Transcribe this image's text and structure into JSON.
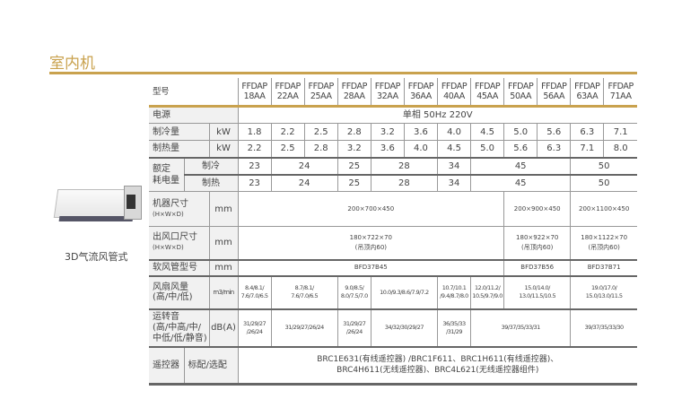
{
  "section_title": "室内机",
  "product": {
    "name": "3D气流风管式"
  },
  "table": {
    "model_label": "型号",
    "models": [
      "FFDAP\n18AA",
      "FFDAP\n22AA",
      "FFDAP\n25AA",
      "FFDAP\n28AA",
      "FFDAP\n32AA",
      "FFDAP\n36AA",
      "FFDAP\n40AA",
      "FFDAP\n45AA",
      "FFDAP\n50AA",
      "FFDAP\n56AA",
      "FFDAP\n63AA",
      "FFDAP\n71AA"
    ],
    "power": {
      "label": "电源",
      "value": "单相 50Hz 220V"
    },
    "cooling_capacity": {
      "label": "制冷量",
      "unit": "kW",
      "values": [
        "1.8",
        "2.2",
        "2.5",
        "2.8",
        "3.2",
        "3.6",
        "4.0",
        "4.5",
        "5.0",
        "5.6",
        "6.3",
        "7.1"
      ]
    },
    "heating_capacity": {
      "label": "制热量",
      "unit": "kW",
      "values": [
        "2.2",
        "2.5",
        "2.8",
        "3.2",
        "3.6",
        "4.0",
        "4.5",
        "5.0",
        "5.6",
        "6.3",
        "7.1",
        "8.0"
      ]
    },
    "rated_power": {
      "label_1": "额定",
      "label_2": "耗电量",
      "cooling": {
        "label": "制冷",
        "values": [
          "23",
          "24",
          "25",
          "28",
          "34",
          "45",
          "50"
        ]
      },
      "heating": {
        "label": "制热",
        "values": [
          "23",
          "24",
          "25",
          "28",
          "34",
          "45",
          "50"
        ]
      }
    },
    "dimensions": {
      "label": "机器尺寸",
      "sub": "(H×W×D)",
      "unit": "mm",
      "values": [
        "200×700×450",
        "200×900×450",
        "200×1100×450"
      ]
    },
    "outlet": {
      "label": "出风口尺寸",
      "sub": "(H×W×D)",
      "unit": "mm",
      "values": [
        "180×722×70",
        "180×922×70",
        "180×1122×70"
      ],
      "note": "(吊顶内60)"
    },
    "duct": {
      "label": "软风管型号",
      "unit": "mm",
      "values": [
        "BFD37B45",
        "BFD37B56",
        "BFD37B71"
      ]
    },
    "airflow": {
      "label": "风扇风量",
      "sub": "(高/中/低)",
      "unit": "m3/min",
      "values": [
        "8.4/8.1/\n7.6/7.0/6.5",
        "8.7/8.1/\n7.6/7.0/6.5",
        "9.0/8.5/\n8.0/7.5/7.0",
        "10.0/9.3/8.6/7.9/7.2",
        "10.7/10.1\n/9.4/8.7/8.0",
        "12.0/11.2/\n10.5/9.7/9.0",
        "15.0/14.0/\n13.0/11.5/10.5",
        "19.0/17.0/\n15.0/13.0/11.5"
      ]
    },
    "noise": {
      "label": "运转音",
      "sub1": "(高/中高/中/",
      "sub2": "中低/低/静音)",
      "unit": "dB(A)",
      "values": [
        "31/29/27\n/26/24",
        "31/29/27/26/24",
        "31/29/27\n/26/24",
        "34/32/30/29/27",
        "36/35/33\n/31/29",
        "39/37/35/33/31",
        "39/37/35/33/30"
      ]
    },
    "remote": {
      "label": "遥控器",
      "sub": "标配/选配",
      "line1": "BRC1E631(有线遥控器) /BRC1F611、BRC1H611(有线遥控器)、",
      "line2": "BRC4H611(无线遥控器)、BRC4L621(无线遥控器组件)"
    }
  },
  "colors": {
    "accent": "#c9a24e"
  }
}
